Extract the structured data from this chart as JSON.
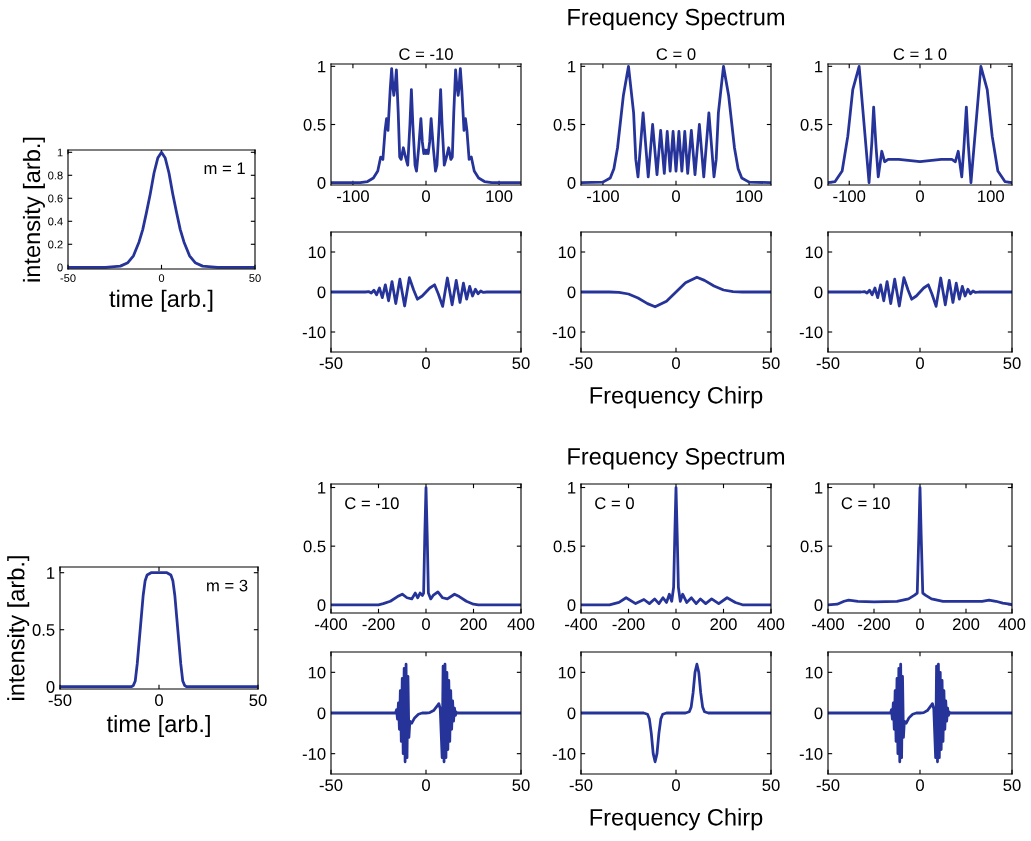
{
  "chart_data": [
    {
      "type": "line",
      "ylabel": "intensity [arb.]",
      "xlabel": "time [arb.]",
      "annotations": [
        "m = 1"
      ],
      "color": "#26349a",
      "xlim": [
        -50,
        50
      ],
      "ylim": [
        -0.015,
        1.02
      ],
      "xticks": [
        -50,
        0,
        50
      ],
      "yticks": [
        0,
        0.2,
        0.4,
        0.6,
        0.8,
        1
      ],
      "x": [
        -50,
        -30,
        -22,
        -18,
        -15,
        -12,
        -10,
        -8,
        -6,
        -4,
        -2,
        0,
        2,
        4,
        6,
        8,
        10,
        12,
        15,
        18,
        22,
        30,
        50
      ],
      "values": [
        0,
        0,
        0.01,
        0.04,
        0.1,
        0.22,
        0.33,
        0.48,
        0.64,
        0.82,
        0.95,
        1,
        0.95,
        0.82,
        0.64,
        0.48,
        0.33,
        0.22,
        0.1,
        0.04,
        0.01,
        0,
        0
      ]
    },
    {
      "type": "line",
      "title": "C = -10",
      "color": "#26349a",
      "xlim": [
        -130,
        130
      ],
      "ylim": [
        -0.02,
        1.02
      ],
      "xticks": [
        -100,
        0,
        100
      ],
      "yticks": [
        0,
        0.5,
        1
      ],
      "x": [
        -130,
        -90,
        -80,
        -72,
        -66,
        -62,
        -59,
        -56,
        -54,
        -52,
        -49,
        -47,
        -45,
        -44,
        -42,
        -40.5,
        -38,
        -36,
        -34,
        -31,
        -28,
        -25,
        -22,
        -20,
        -18,
        -15,
        -13,
        -10,
        -7,
        -5,
        -3,
        -1.5,
        0,
        1.5,
        3,
        5,
        7,
        10,
        13,
        15,
        18,
        20,
        22,
        25,
        28,
        31,
        34,
        36,
        38,
        40.5,
        42,
        44,
        45,
        47,
        49,
        52,
        54,
        56,
        59,
        62,
        66,
        72,
        80,
        90,
        130
      ],
      "values": [
        0,
        0,
        0.01,
        0.04,
        0.1,
        0.22,
        0.2,
        0.45,
        0.55,
        0.45,
        0.8,
        0.98,
        0.8,
        0.75,
        0.85,
        0.97,
        0.6,
        0.22,
        0.2,
        0.3,
        0.22,
        0.15,
        0.5,
        0.8,
        0.5,
        0.15,
        0.1,
        0.3,
        0.55,
        0.35,
        0.25,
        0.28,
        0.25,
        0.28,
        0.25,
        0.35,
        0.55,
        0.3,
        0.1,
        0.15,
        0.5,
        0.8,
        0.5,
        0.15,
        0.22,
        0.3,
        0.2,
        0.22,
        0.6,
        0.97,
        0.85,
        0.75,
        0.8,
        0.98,
        0.8,
        0.45,
        0.55,
        0.45,
        0.2,
        0.22,
        0.1,
        0.04,
        0.01,
        0,
        0
      ]
    },
    {
      "type": "line",
      "title": "Frequency Spectrum",
      "subtitle": "C = 0",
      "color": "#26349a",
      "xlim": [
        -130,
        130
      ],
      "ylim": [
        -0.02,
        1.02
      ],
      "xticks": [
        -100,
        0,
        100
      ],
      "yticks": [
        0,
        0.5,
        1
      ],
      "x": [
        -130,
        -100,
        -90,
        -85,
        -80,
        -72,
        -65,
        -58,
        -55,
        -52,
        -45,
        -38,
        -32,
        -26,
        -21,
        -16,
        -12,
        -8,
        -4,
        0,
        4,
        8,
        12,
        16,
        21,
        26,
        32,
        38,
        45,
        52,
        55,
        58,
        65,
        72,
        80,
        85,
        90,
        100,
        130
      ],
      "values": [
        0,
        0.005,
        0.04,
        0.12,
        0.3,
        0.75,
        1,
        0.6,
        0.2,
        0.05,
        0.6,
        0.05,
        0.5,
        0.07,
        0.45,
        0.08,
        0.44,
        0.1,
        0.44,
        0.1,
        0.44,
        0.1,
        0.44,
        0.08,
        0.45,
        0.07,
        0.5,
        0.05,
        0.6,
        0.05,
        0.2,
        0.6,
        1,
        0.75,
        0.3,
        0.12,
        0.04,
        0.005,
        0
      ]
    },
    {
      "type": "line",
      "title": "C = 1 0",
      "color": "#26349a",
      "xlim": [
        -130,
        130
      ],
      "ylim": [
        -0.02,
        1.02
      ],
      "xticks": [
        -100,
        0,
        100
      ],
      "yticks": [
        0,
        0.5,
        1
      ],
      "x": [
        -130,
        -120,
        -110,
        -102,
        -95,
        -86,
        -79,
        -72,
        -68,
        -65.5,
        -62,
        -59,
        -54,
        -50,
        -45,
        -30,
        0,
        30,
        45,
        50,
        54,
        59,
        62,
        65.5,
        68,
        72,
        79,
        86,
        95,
        102,
        110,
        120,
        130
      ],
      "values": [
        0,
        0.01,
        0.1,
        0.4,
        0.8,
        1,
        0.5,
        0.0,
        0.35,
        0.65,
        0.3,
        0.05,
        0.27,
        0.18,
        0.2,
        0.2,
        0.18,
        0.2,
        0.2,
        0.18,
        0.27,
        0.05,
        0.3,
        0.65,
        0.35,
        0.0,
        0.5,
        1,
        0.8,
        0.4,
        0.1,
        0.01,
        0
      ]
    },
    {
      "type": "line",
      "color": "#26349a",
      "xlim": [
        -50,
        50
      ],
      "ylim": [
        -15,
        15
      ],
      "xticks": [
        -50,
        0,
        50
      ],
      "yticks": [
        -10,
        0,
        10
      ],
      "x": [
        -50,
        -32,
        -30.2,
        -28.8,
        -27.4,
        -26,
        -24.5,
        -23,
        -21.4,
        -19.7,
        -17.9,
        -15.9,
        -13.75,
        -11.25,
        -8.75,
        -6.5,
        -4.5,
        -2,
        0,
        2,
        4.5,
        6.5,
        8.75,
        11.25,
        13.75,
        15.9,
        17.9,
        19.7,
        21.4,
        23,
        24.5,
        26,
        27.4,
        28.8,
        30.2,
        32,
        50
      ],
      "values": [
        0,
        0,
        0.12,
        -0.25,
        0.45,
        -0.7,
        1.0,
        -1.4,
        1.8,
        -2.2,
        2.6,
        -2.9,
        3.2,
        -3.5,
        3.6,
        0.5,
        -1.8,
        -1.0,
        0,
        1.0,
        1.8,
        -0.5,
        -3.6,
        3.5,
        -3.2,
        2.9,
        -2.6,
        2.2,
        -1.8,
        1.4,
        -1.0,
        0.7,
        -0.45,
        0.25,
        -0.12,
        0,
        0
      ]
    },
    {
      "type": "line",
      "xlabel": "Frequency Chirp",
      "color": "#26349a",
      "xlim": [
        -50,
        50
      ],
      "ylim": [
        -15,
        15
      ],
      "xticks": [
        -50,
        0,
        50
      ],
      "yticks": [
        -10,
        0,
        10
      ],
      "x": [
        -50,
        -35,
        -30,
        -25,
        -20,
        -15,
        -11,
        -5,
        0,
        5,
        11,
        15,
        20,
        25,
        30,
        35,
        50
      ],
      "values": [
        0,
        0,
        -0.1,
        -0.5,
        -1.5,
        -2.9,
        -3.7,
        -2.3,
        0,
        2.3,
        3.7,
        2.9,
        1.5,
        0.5,
        0.1,
        0,
        0
      ]
    },
    {
      "type": "line",
      "color": "#26349a",
      "xlim": [
        -50,
        50
      ],
      "ylim": [
        -15,
        15
      ],
      "xticks": [
        -50,
        0,
        50
      ],
      "yticks": [
        -10,
        0,
        10
      ],
      "x": [
        -50,
        -32,
        -30.2,
        -28.8,
        -27.4,
        -26,
        -24.5,
        -23,
        -21.4,
        -19.7,
        -17.9,
        -15.9,
        -13.75,
        -11.25,
        -8.75,
        -6.5,
        -4.5,
        -2,
        0,
        2,
        4.5,
        6.5,
        8.75,
        11.25,
        13.75,
        15.9,
        17.9,
        19.7,
        21.4,
        23,
        24.5,
        26,
        27.4,
        28.8,
        30.2,
        32,
        50
      ],
      "values": [
        0,
        0,
        0.12,
        -0.25,
        0.45,
        -0.7,
        1.0,
        -1.4,
        1.8,
        -2.2,
        2.6,
        -2.9,
        3.2,
        -3.5,
        3.6,
        0.5,
        -1.8,
        -1.0,
        0,
        1.0,
        1.8,
        -0.5,
        -3.6,
        3.5,
        -3.2,
        2.9,
        -2.6,
        2.2,
        -1.8,
        1.4,
        -1.0,
        0.7,
        -0.45,
        0.25,
        -0.12,
        0,
        0
      ]
    },
    {
      "type": "line",
      "ylabel": "intensity [arb.]",
      "xlabel": "time [arb.]",
      "annotations": [
        "m = 3"
      ],
      "color": "#26349a",
      "xlim": [
        -50,
        50
      ],
      "ylim": [
        -0.02,
        1.05
      ],
      "xticks": [
        -50,
        0,
        50
      ],
      "yticks": [
        0,
        0.5,
        1
      ],
      "x": [
        -50,
        -14,
        -13,
        -12,
        -11,
        -10,
        -9,
        -8,
        -7,
        -6,
        -4,
        0,
        4,
        6,
        7,
        8,
        9,
        10,
        11,
        12,
        13,
        14,
        50
      ],
      "values": [
        0,
        0,
        0.01,
        0.05,
        0.2,
        0.4,
        0.6,
        0.8,
        0.93,
        0.98,
        1,
        1,
        1,
        0.98,
        0.93,
        0.8,
        0.6,
        0.4,
        0.2,
        0.05,
        0.01,
        0,
        0
      ]
    },
    {
      "type": "line",
      "annotations": [
        "C = -10"
      ],
      "color": "#26349a",
      "xlim": [
        -400,
        400
      ],
      "ylim": [
        -0.07,
        1.03
      ],
      "xticks": [
        -400,
        -200,
        0,
        200,
        400
      ],
      "yticks": [
        0,
        0.5,
        1
      ],
      "x": [
        -400,
        -200,
        -180,
        -150,
        -120,
        -100,
        -80,
        -60,
        -45,
        -35,
        -25,
        -15,
        -10,
        -5,
        0,
        5,
        10,
        20,
        30,
        50,
        70,
        90,
        120,
        140,
        170,
        200,
        220,
        400
      ],
      "values": [
        0,
        0,
        0.01,
        0.03,
        0.07,
        0.09,
        0.06,
        0.05,
        0.1,
        0.06,
        0.1,
        0.08,
        0.1,
        0.6,
        1,
        0.6,
        0.1,
        0.05,
        0.08,
        0.11,
        0.06,
        0.05,
        0.09,
        0.07,
        0.03,
        0.005,
        0,
        0
      ]
    },
    {
      "type": "line",
      "title": "Frequency Spectrum",
      "annotations": [
        "C = 0"
      ],
      "color": "#26349a",
      "xlim": [
        -400,
        400
      ],
      "ylim": [
        -0.07,
        1.03
      ],
      "xticks": [
        -400,
        -200,
        0,
        200,
        400
      ],
      "yticks": [
        0,
        0.5,
        1
      ],
      "x": [
        -400,
        -280,
        -240,
        -210,
        -170,
        -135,
        -112,
        -90,
        -72,
        -55,
        -40,
        -28,
        -18,
        -10,
        -5,
        0,
        5,
        10,
        18,
        28,
        45,
        65,
        85,
        103,
        125,
        150,
        180,
        215,
        250,
        280,
        400
      ],
      "values": [
        0,
        0,
        0.02,
        0.06,
        0.01,
        0.045,
        0.01,
        0.05,
        0.01,
        0.06,
        0.02,
        0.09,
        0.03,
        0.15,
        0.6,
        1,
        0.6,
        0.15,
        0.03,
        0.09,
        0.02,
        0.06,
        0.01,
        0.05,
        0.01,
        0.05,
        0.01,
        0.06,
        0.02,
        0,
        0
      ]
    },
    {
      "type": "line",
      "annotations": [
        "C = 10"
      ],
      "color": "#26349a",
      "xlim": [
        -400,
        400
      ],
      "ylim": [
        -0.07,
        1.03
      ],
      "xticks": [
        -400,
        -200,
        0,
        200,
        400
      ],
      "yticks": [
        0,
        0.5,
        1
      ],
      "x": [
        -400,
        -360,
        -330,
        -310,
        -270,
        -200,
        -100,
        -50,
        -25,
        -12,
        -5,
        0,
        5,
        12,
        25,
        50,
        100,
        200,
        270,
        300,
        330,
        360,
        390,
        400
      ],
      "values": [
        0,
        0.005,
        0.03,
        0.04,
        0.03,
        0.025,
        0.03,
        0.05,
        0.08,
        0.1,
        0.6,
        1,
        0.6,
        0.1,
        0.08,
        0.05,
        0.03,
        0.03,
        0.03,
        0.04,
        0.03,
        0.015,
        0.005,
        0
      ]
    },
    {
      "type": "line",
      "color": "#26349a",
      "xlim": [
        -50,
        50
      ],
      "ylim": [
        -15,
        15
      ],
      "xticks": [
        -50,
        0,
        50
      ],
      "yticks": [
        -10,
        0,
        10
      ],
      "x": [
        -50,
        -16,
        -15.5,
        -15,
        -14.5,
        -14,
        -13.5,
        -13,
        -12.5,
        -12,
        -11.5,
        -11,
        -10.5,
        -10,
        -9.5,
        -9,
        -8.5,
        -7.5,
        -6,
        -4,
        -2,
        0,
        2,
        4,
        6,
        6.75,
        7.5,
        8,
        8.5,
        9,
        9.5,
        10,
        10.5,
        11,
        11.5,
        12,
        12.5,
        13,
        13.5,
        14,
        14.5,
        15,
        15.5,
        16,
        16.5,
        50
      ],
      "values": [
        0,
        0,
        0.8,
        -1.5,
        2.5,
        -4,
        5.5,
        -7,
        8.5,
        -10,
        11,
        -12,
        12,
        -11,
        9,
        -6,
        -2,
        -2.5,
        -1.2,
        -0.3,
        0,
        0,
        0.1,
        0.6,
        1.8,
        2.3,
        1,
        -5,
        -11,
        11.5,
        -12,
        12,
        -11,
        10,
        -9,
        8,
        -7,
        5.5,
        -4,
        3,
        -2,
        1.2,
        -0.6,
        0.2,
        0,
        0
      ]
    },
    {
      "type": "line",
      "xlabel": "Frequency Chirp",
      "color": "#26349a",
      "xlim": [
        -50,
        50
      ],
      "ylim": [
        -15,
        15
      ],
      "xticks": [
        -50,
        0,
        50
      ],
      "yticks": [
        -10,
        0,
        10
      ],
      "x": [
        -50,
        -17,
        -15,
        -14,
        -13,
        -12,
        -11,
        -10,
        -9,
        -8,
        -7,
        -5,
        5,
        7,
        8,
        9,
        10,
        11,
        12,
        13,
        14,
        15,
        17,
        50
      ],
      "values": [
        0,
        0,
        -0.3,
        -1.5,
        -5,
        -10,
        -12,
        -10,
        -5,
        -1.5,
        -0.3,
        0,
        0,
        0.3,
        1.5,
        5,
        10,
        12,
        10,
        5,
        1.5,
        0.3,
        0,
        0
      ]
    },
    {
      "type": "line",
      "color": "#26349a",
      "xlim": [
        -50,
        50
      ],
      "ylim": [
        -15,
        15
      ],
      "xticks": [
        -50,
        0,
        50
      ],
      "yticks": [
        -10,
        0,
        10
      ],
      "x": [
        -50,
        -16,
        -15.5,
        -15,
        -14.5,
        -14,
        -13.5,
        -13,
        -12.5,
        -12,
        -11.5,
        -11,
        -10.5,
        -10,
        -9.5,
        -9,
        -8.5,
        -7.5,
        -6,
        -4,
        -2,
        0,
        2,
        4,
        6,
        6.75,
        7.5,
        8,
        8.5,
        9,
        9.5,
        10,
        10.5,
        11,
        11.5,
        12,
        12.5,
        13,
        13.5,
        14,
        14.5,
        15,
        15.5,
        16,
        16.5,
        50
      ],
      "values": [
        0,
        0,
        0.8,
        -1.5,
        2.5,
        -4,
        5.5,
        -7,
        8.5,
        -10,
        11,
        -12,
        12,
        -11,
        9,
        -6,
        -2,
        -2.5,
        -1.2,
        -0.3,
        0,
        0,
        0.1,
        0.6,
        1.8,
        2.3,
        1,
        -5,
        -11,
        11.5,
        -12,
        12,
        -11,
        10,
        -9,
        8,
        -7,
        5.5,
        -4,
        3,
        -2,
        1.2,
        -0.6,
        0.2,
        0,
        0
      ]
    }
  ]
}
